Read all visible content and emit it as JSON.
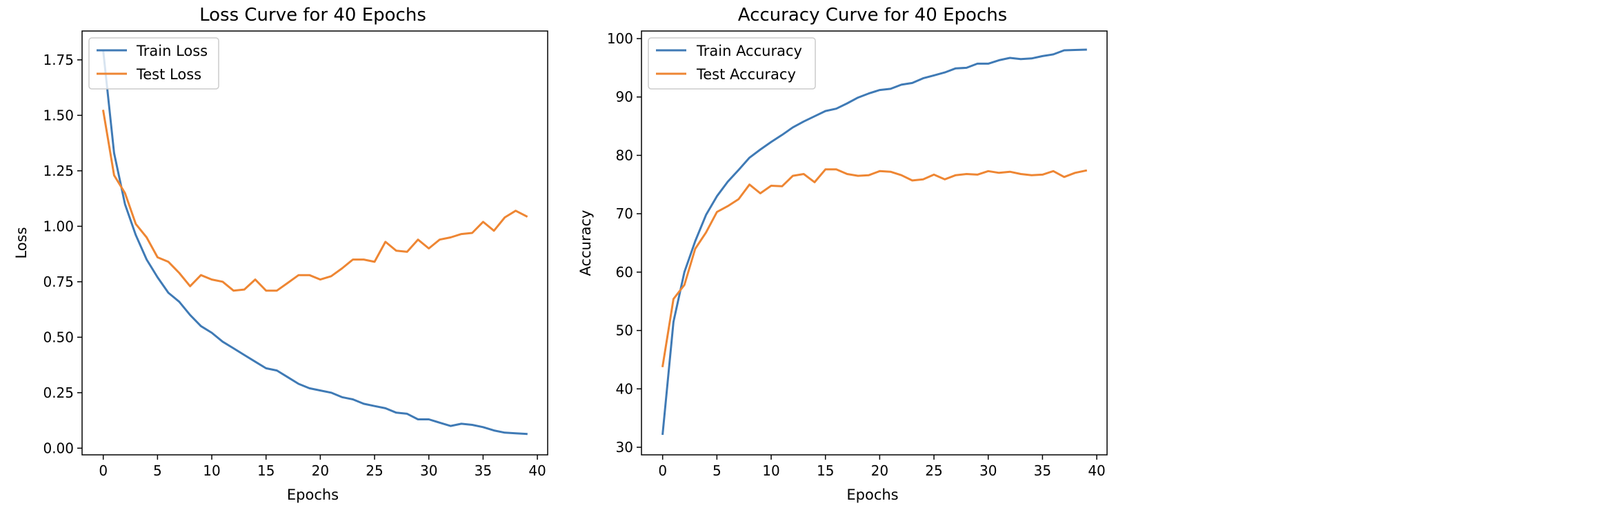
{
  "chart_data": [
    {
      "type": "line",
      "title": "Loss Curve for 40 Epochs",
      "xlabel": "Epochs",
      "ylabel": "Loss",
      "xlim": [
        -1.95,
        40.95
      ],
      "ylim": [
        -0.03,
        1.88
      ],
      "xticks": [
        "0",
        "5",
        "10",
        "15",
        "20",
        "25",
        "30",
        "35",
        "40"
      ],
      "yticks": [
        "0.00",
        "0.25",
        "0.50",
        "0.75",
        "1.00",
        "1.25",
        "1.50",
        "1.75"
      ],
      "grid": false,
      "legend_position": "upper left",
      "x": [
        0,
        1,
        2,
        3,
        4,
        5,
        6,
        7,
        8,
        9,
        10,
        11,
        12,
        13,
        14,
        15,
        16,
        17,
        18,
        19,
        20,
        21,
        22,
        23,
        24,
        25,
        26,
        27,
        28,
        29,
        30,
        31,
        32,
        33,
        34,
        35,
        36,
        37,
        38,
        39
      ],
      "series": [
        {
          "name": "Train Loss",
          "color": "#3f7ab5",
          "values": [
            1.79,
            1.33,
            1.1,
            0.96,
            0.85,
            0.77,
            0.7,
            0.66,
            0.6,
            0.55,
            0.52,
            0.48,
            0.45,
            0.42,
            0.39,
            0.36,
            0.35,
            0.32,
            0.29,
            0.27,
            0.26,
            0.25,
            0.23,
            0.22,
            0.2,
            0.19,
            0.18,
            0.16,
            0.155,
            0.13,
            0.13,
            0.115,
            0.1,
            0.11,
            0.105,
            0.095,
            0.08,
            0.07,
            0.067,
            0.064
          ]
        },
        {
          "name": "Test Loss",
          "color": "#ee8633",
          "values": [
            1.52,
            1.23,
            1.15,
            1.01,
            0.95,
            0.86,
            0.84,
            0.79,
            0.73,
            0.78,
            0.76,
            0.75,
            0.71,
            0.715,
            0.76,
            0.71,
            0.71,
            0.745,
            0.78,
            0.78,
            0.76,
            0.775,
            0.81,
            0.85,
            0.85,
            0.84,
            0.93,
            0.89,
            0.885,
            0.94,
            0.9,
            0.94,
            0.95,
            0.965,
            0.97,
            1.02,
            0.98,
            1.04,
            1.07,
            1.045
          ]
        }
      ]
    },
    {
      "type": "line",
      "title": "Accuracy Curve for 40 Epochs",
      "xlabel": "Epochs",
      "ylabel": "Accuracy",
      "xlim": [
        -1.95,
        40.95
      ],
      "ylim": [
        28.7,
        101.3
      ],
      "xticks": [
        "0",
        "5",
        "10",
        "15",
        "20",
        "25",
        "30",
        "35",
        "40"
      ],
      "yticks": [
        "30",
        "40",
        "50",
        "60",
        "70",
        "80",
        "90",
        "100"
      ],
      "grid": false,
      "legend_position": "upper left",
      "x": [
        0,
        1,
        2,
        3,
        4,
        5,
        6,
        7,
        8,
        9,
        10,
        11,
        12,
        13,
        14,
        15,
        16,
        17,
        18,
        19,
        20,
        21,
        22,
        23,
        24,
        25,
        26,
        27,
        28,
        29,
        30,
        31,
        32,
        33,
        34,
        35,
        36,
        37,
        38,
        39
      ],
      "series": [
        {
          "name": "Train Accuracy",
          "color": "#3f7ab5",
          "values": [
            32.3,
            51.5,
            60.0,
            65.3,
            69.8,
            73.0,
            75.5,
            77.5,
            79.6,
            81.0,
            82.3,
            83.5,
            84.8,
            85.8,
            86.7,
            87.6,
            88.0,
            88.9,
            89.9,
            90.6,
            91.2,
            91.4,
            92.1,
            92.4,
            93.2,
            93.7,
            94.2,
            94.9,
            95.0,
            95.7,
            95.7,
            96.3,
            96.7,
            96.5,
            96.6,
            97.0,
            97.3,
            98.0,
            98.05,
            98.1
          ]
        },
        {
          "name": "Test Accuracy",
          "color": "#ee8633",
          "values": [
            43.9,
            55.4,
            57.8,
            64.0,
            66.8,
            70.3,
            71.3,
            72.5,
            75.0,
            73.5,
            74.8,
            74.7,
            76.5,
            76.8,
            75.4,
            77.6,
            77.6,
            76.8,
            76.5,
            76.6,
            77.3,
            77.2,
            76.6,
            75.7,
            75.9,
            76.7,
            75.9,
            76.6,
            76.8,
            76.7,
            77.3,
            77.0,
            77.2,
            76.8,
            76.6,
            76.7,
            77.3,
            76.3,
            77.0,
            77.4
          ]
        }
      ]
    }
  ]
}
